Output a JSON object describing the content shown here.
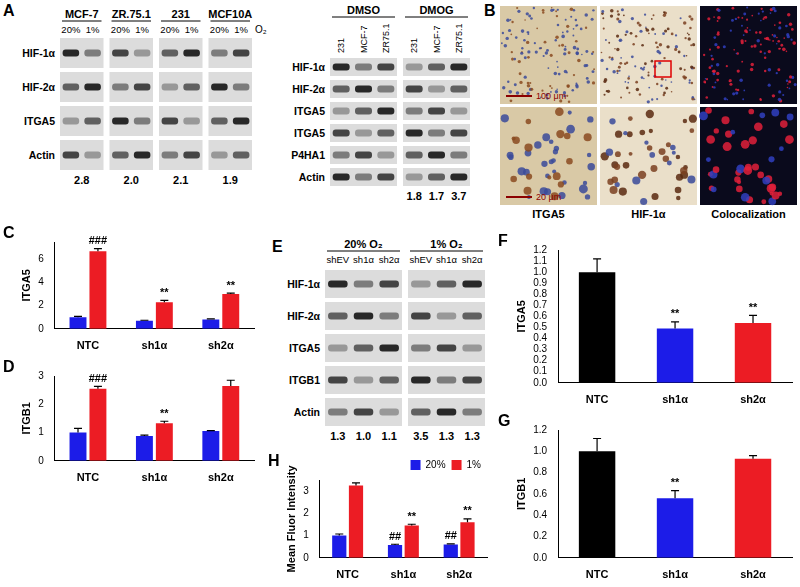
{
  "chart_data": [
    {
      "type": "bar",
      "title": "C",
      "y_label": "ITGA5",
      "categories": [
        "NTC",
        "sh1α",
        "sh2α"
      ],
      "series": [
        {
          "color": "#1c1ce8",
          "values": [
            1.0,
            0.7,
            0.8
          ],
          "errors": [
            0.08,
            0.04,
            0.05
          ]
        },
        {
          "color": "#ec1c24",
          "values": [
            6.7,
            2.3,
            3.0
          ],
          "errors": [
            0.22,
            0.15,
            0.08
          ],
          "annotations": [
            "###",
            "**",
            "**"
          ]
        }
      ],
      "ylim": [
        0,
        7.5
      ],
      "yticks": [
        0,
        2,
        4,
        6
      ],
      "grid": false
    },
    {
      "type": "bar",
      "title": "D",
      "y_label": "ITGB1",
      "categories": [
        "NTC",
        "sh1α",
        "sh2α"
      ],
      "series": [
        {
          "color": "#1c1ce8",
          "values": [
            1.0,
            0.88,
            1.05
          ],
          "errors": [
            0.15,
            0.03,
            0.02
          ]
        },
        {
          "color": "#ec1c24",
          "values": [
            2.55,
            1.33,
            2.65
          ],
          "errors": [
            0.08,
            0.07,
            0.2
          ],
          "annotations": [
            "###",
            "**",
            null
          ]
        }
      ],
      "ylim": [
        0,
        3
      ],
      "yticks": [
        0,
        1,
        2,
        3
      ],
      "grid": false
    },
    {
      "type": "bar",
      "title": "F",
      "y_label": "ITGA5",
      "categories": [
        "NTC",
        "sh1α",
        "sh2α"
      ],
      "values": [
        1.0,
        0.49,
        0.54
      ],
      "errors": [
        0.12,
        0.06,
        0.07
      ],
      "annotations": [
        null,
        "**",
        "**"
      ],
      "colors": [
        "#000000",
        "#1c1ce8",
        "#ec1c24"
      ],
      "ylim": [
        0,
        1.2
      ],
      "yticks": [
        {
          "value": 0,
          "label": "0.0"
        },
        0.1,
        0.2,
        0.3,
        0.4,
        0.5,
        0.6,
        0.7,
        0.8,
        0.9,
        {
          "value": 1,
          "label": "1.0"
        },
        1.1,
        1.2
      ],
      "grid": false
    },
    {
      "type": "bar",
      "title": "G",
      "y_label": "ITGB1",
      "categories": [
        "NTC",
        "sh1α",
        "sh2α"
      ],
      "values": [
        1.0,
        0.56,
        0.93
      ],
      "errors": [
        0.12,
        0.07,
        0.03
      ],
      "annotations": [
        null,
        "**",
        null
      ],
      "colors": [
        "#000000",
        "#1c1ce8",
        "#ec1c24"
      ],
      "ylim": [
        0,
        1.2
      ],
      "yticks": [
        {
          "value": 0,
          "label": "0.0"
        },
        0.2,
        0.4,
        0.6,
        0.8,
        {
          "value": 1,
          "label": "1.0"
        },
        1.2
      ],
      "grid": false
    },
    {
      "type": "bar",
      "title": "H",
      "y_label": "Mean Fluor Intensity",
      "categories": [
        "NTC",
        "sh1α",
        "sh2α"
      ],
      "series": [
        {
          "name": "20%",
          "color": "#1c1ce8",
          "values": [
            1.0,
            0.58,
            0.6
          ],
          "errors": [
            0.07,
            0.03,
            0.03
          ],
          "annotations": [
            null,
            "##",
            "##"
          ]
        },
        {
          "name": "1%",
          "color": "#ec1c24",
          "values": [
            3.25,
            1.45,
            1.6
          ],
          "errors": [
            0.12,
            0.06,
            0.15
          ],
          "annotations": [
            null,
            "**",
            "**"
          ]
        }
      ],
      "ylim": [
        0,
        3.5
      ],
      "yticks": [
        0,
        1,
        2,
        3
      ],
      "grid": false,
      "legend": "top-right"
    }
  ],
  "blots": [
    {
      "title": "A",
      "groups": [
        {
          "label": "MCF-7",
          "lanes": [
            "20%",
            "1%"
          ]
        },
        {
          "label": "ZR.75.1",
          "lanes": [
            "20%",
            "1%"
          ]
        },
        {
          "label": "231",
          "lanes": [
            "20%",
            "1%"
          ]
        },
        {
          "label": "MCF10A",
          "lanes": [
            "20%",
            "1%"
          ]
        }
      ],
      "condition_label": "O₂",
      "rows": [
        "HIF-1α",
        "HIF-2α",
        "ITGA5",
        "Actin"
      ],
      "group_ratios": [
        "2.8",
        "2.0",
        "2.1",
        "1.9"
      ]
    },
    {
      "groups": [
        {
          "label": "DMSO",
          "lanes": [
            "231",
            "MCF-7",
            "ZR75.1"
          ]
        },
        {
          "label": "DMOG",
          "lanes": [
            "231",
            "MCF-7",
            "ZR75.1"
          ]
        }
      ],
      "rows": [
        "HIF-1α",
        "HIF-2α",
        "ITGA5",
        "ITGA5",
        "P4HA1",
        "Actin"
      ],
      "lane_ratios": [
        null,
        null,
        null,
        "1.8",
        "1.7",
        "3.7"
      ]
    },
    {
      "title": "E",
      "groups": [
        {
          "label": "20% O₂",
          "lanes": [
            "shEV",
            "sh1α",
            "sh2α"
          ]
        },
        {
          "label": "1% O₂",
          "lanes": [
            "shEV",
            "sh1α",
            "sh2α"
          ]
        }
      ],
      "rows": [
        "HIF-1α",
        "HIF-2α",
        "ITGA5",
        "ITGB1",
        "Actin"
      ],
      "lane_ratios": [
        "1.3",
        "1.0",
        "1.1",
        "3.5",
        "1.3",
        "1.3"
      ]
    }
  ],
  "image_panel": {
    "title": "B",
    "columns": [
      "ITGA5",
      "HIF-1α",
      "Colocalization"
    ],
    "scale_bars": [
      "100 μm",
      "20 μm"
    ]
  }
}
